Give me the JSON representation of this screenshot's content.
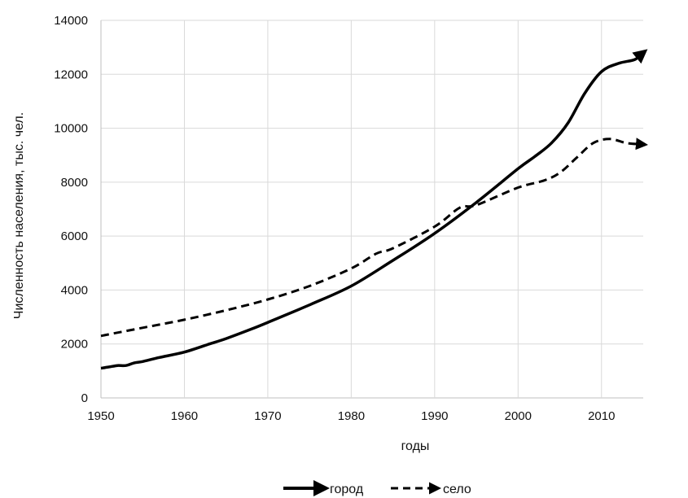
{
  "chart_data": {
    "type": "line",
    "xlabel": "годы",
    "ylabel": "Численность населения, тыс. чел.",
    "xlim": [
      1950,
      2015
    ],
    "ylim": [
      0,
      14000
    ],
    "xticks": [
      1950,
      1960,
      1970,
      1980,
      1990,
      2000,
      2010
    ],
    "yticks": [
      0,
      2000,
      4000,
      6000,
      8000,
      10000,
      12000,
      14000
    ],
    "grid": true,
    "legend_position": "bottom",
    "series": [
      {
        "name": "город",
        "style": "solid",
        "color": "#000000",
        "x": [
          1950,
          1951,
          1952,
          1953,
          1954,
          1955,
          1957,
          1960,
          1963,
          1965,
          1968,
          1970,
          1975,
          1980,
          1985,
          1990,
          1995,
          2000,
          2002,
          2004,
          2006,
          2008,
          2010,
          2012,
          2014,
          2015
        ],
        "values": [
          1100,
          1150,
          1200,
          1200,
          1300,
          1350,
          1500,
          1700,
          2000,
          2200,
          2550,
          2800,
          3450,
          4150,
          5100,
          6100,
          7250,
          8500,
          8950,
          9450,
          10200,
          11300,
          12100,
          12400,
          12550,
          12800
        ]
      },
      {
        "name": "село",
        "style": "dashed",
        "color": "#000000",
        "x": [
          1950,
          1955,
          1960,
          1965,
          1970,
          1975,
          1980,
          1983,
          1985,
          1990,
          1993,
          1995,
          2000,
          2003,
          2005,
          2007,
          2009,
          2011,
          2013,
          2015
        ],
        "values": [
          2300,
          2600,
          2900,
          3250,
          3650,
          4150,
          4800,
          5350,
          5550,
          6350,
          7050,
          7150,
          7800,
          8050,
          8350,
          8900,
          9450,
          9600,
          9450,
          9400
        ]
      }
    ]
  }
}
